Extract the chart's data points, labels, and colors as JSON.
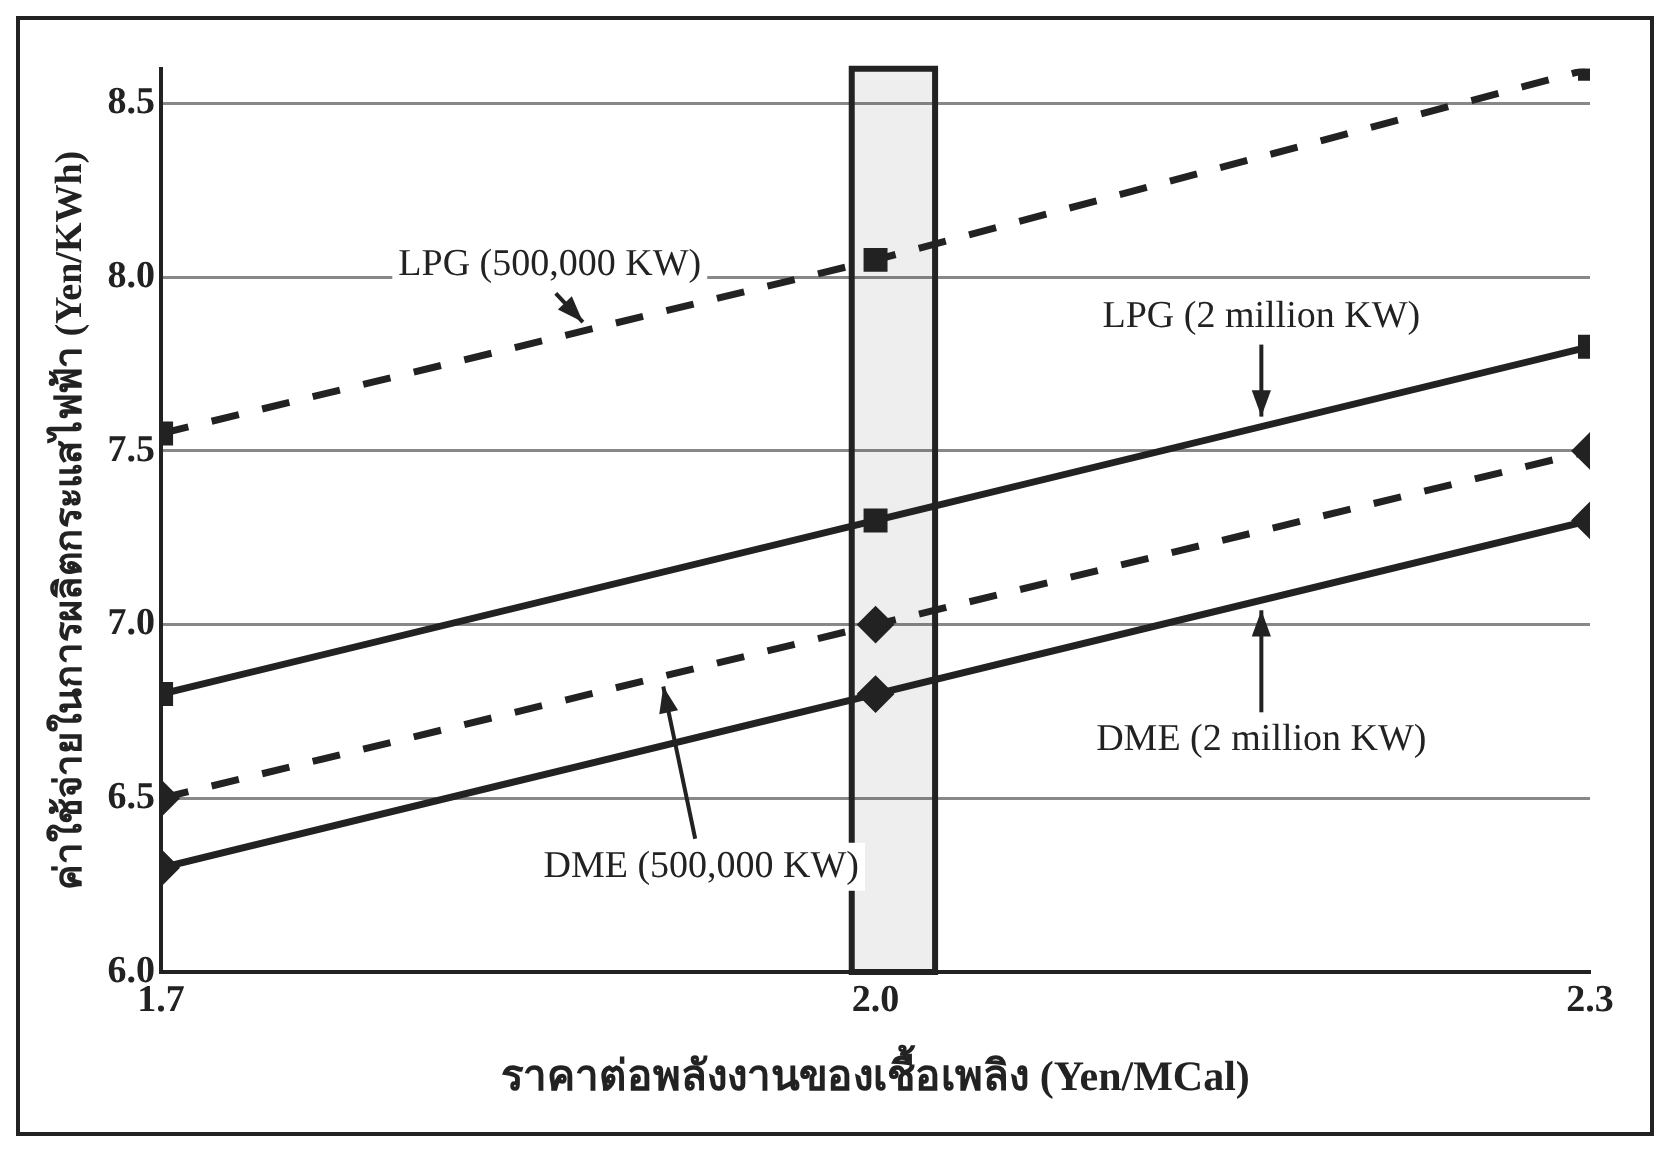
{
  "chart_data": {
    "type": "line",
    "xlabel": "ราคาต่อพลังงานของเชื้อเพลิง (Yen/MCal)",
    "ylabel": "ค่าใช้จ่ายในการผลิตกระแสไฟฟ้า (Yen/KWh)",
    "x": [
      1.7,
      2.0,
      2.3
    ],
    "series": [
      {
        "name": "LPG (500,000 KW)",
        "color": "#222222",
        "values": [
          7.55,
          8.05,
          8.6
        ],
        "marker": "square",
        "line_style": "dashed"
      },
      {
        "name": "LPG (2 million KW)",
        "color": "#222222",
        "values": [
          6.8,
          7.3,
          7.8
        ],
        "marker": "square",
        "line_style": "solid"
      },
      {
        "name": "DME (500,000 KW)",
        "color": "#222222",
        "values": [
          6.5,
          7.0,
          7.5
        ],
        "marker": "diamond",
        "line_style": "dashed"
      },
      {
        "name": "DME (2 million KW)",
        "color": "#222222",
        "values": [
          6.3,
          6.8,
          7.3
        ],
        "marker": "diamond",
        "line_style": "solid"
      }
    ],
    "xlim": [
      1.7,
      2.3
    ],
    "xticks": [
      1.7,
      {
        "value": 2,
        "label": "2.0"
      },
      2.3
    ],
    "ylim": [
      6.0,
      8.6
    ],
    "yticks": [
      {
        "value": 6,
        "label": "6.0"
      },
      6.5,
      {
        "value": 7,
        "label": "7.0"
      },
      7.5,
      {
        "value": 8,
        "label": "8.0"
      },
      8.5
    ],
    "bands": [
      {
        "axis": "x",
        "from": 1.99,
        "to": 2.025,
        "color": "#222222"
      }
    ],
    "grid": "y",
    "legend": false
  }
}
